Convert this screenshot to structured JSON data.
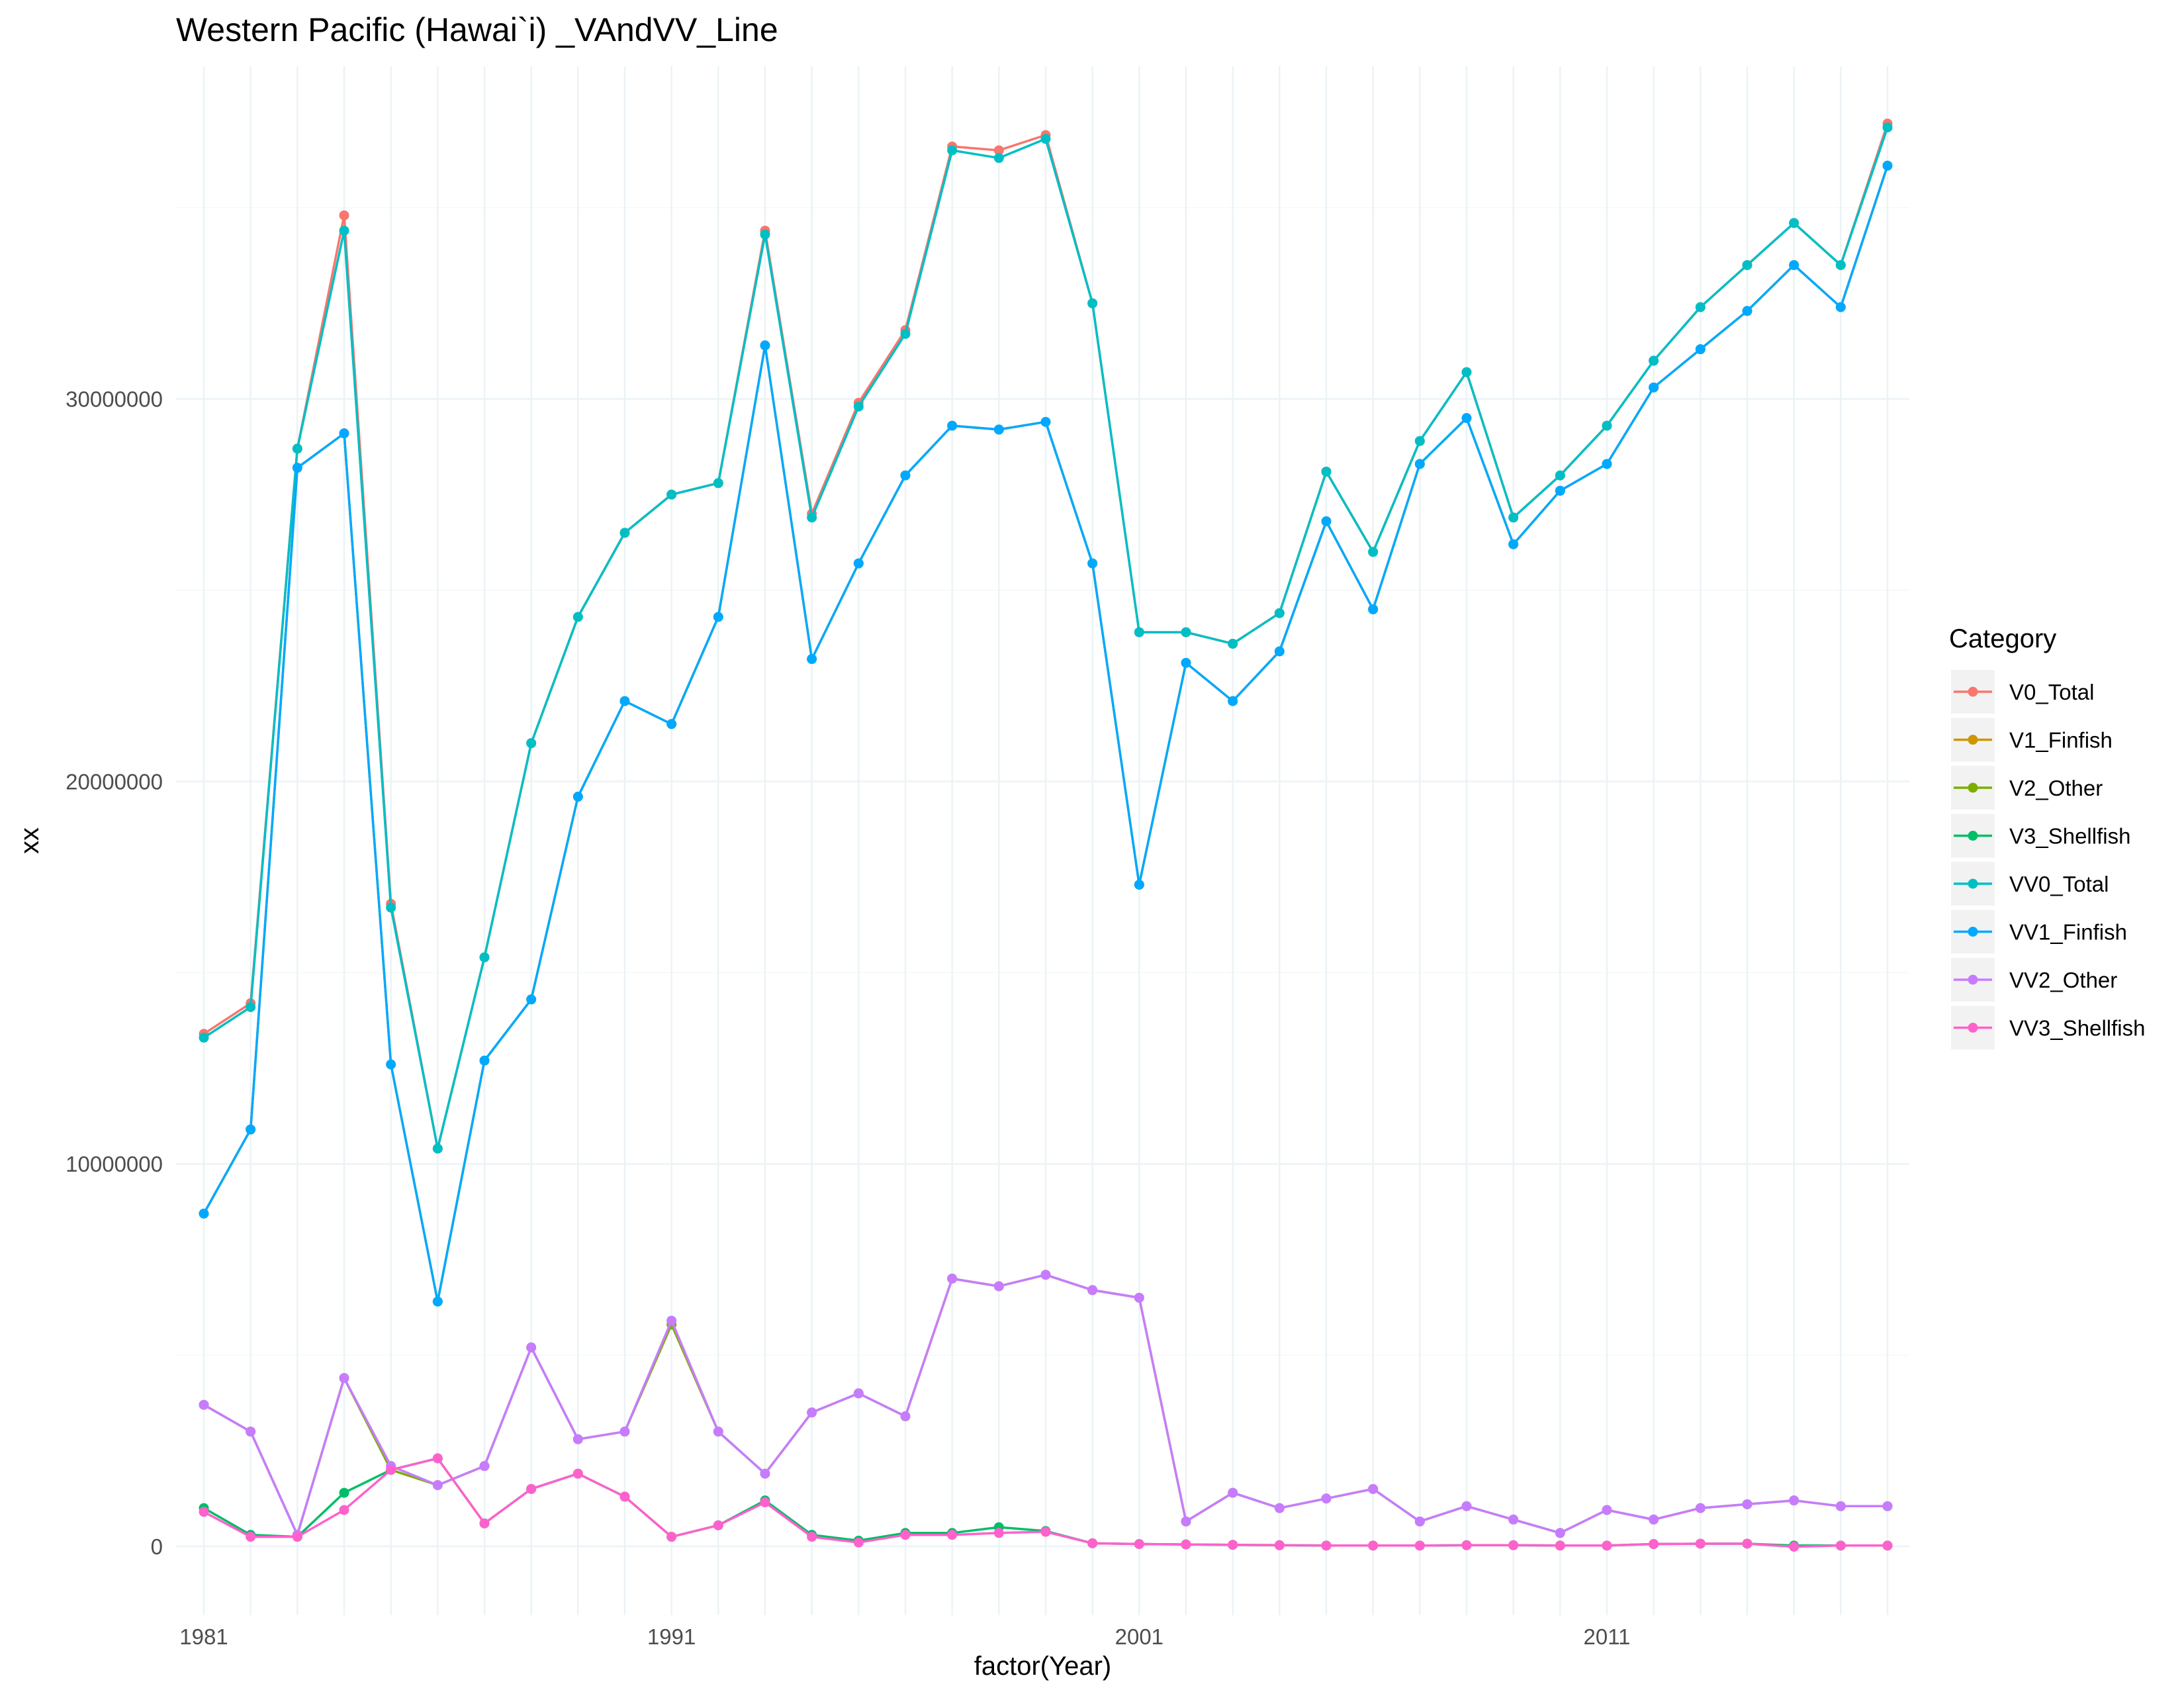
{
  "chart_data": {
    "type": "line",
    "title": "Western Pacific (Hawai`i) _VAndVV_Line",
    "xlabel": "factor(Year)",
    "ylabel": "xx",
    "x": [
      1981,
      1982,
      1983,
      1984,
      1985,
      1986,
      1987,
      1988,
      1989,
      1990,
      1991,
      1992,
      1993,
      1994,
      1995,
      1996,
      1997,
      1998,
      1999,
      2000,
      2001,
      2002,
      2003,
      2004,
      2005,
      2006,
      2007,
      2008,
      2009,
      2010,
      2011,
      2012,
      2013,
      2014,
      2015,
      2016,
      2017
    ],
    "x_tick_labels": [
      "1981",
      "1991",
      "2001",
      "2011"
    ],
    "y_ticks": [
      0,
      10000000,
      20000000,
      30000000
    ],
    "y_tick_labels": [
      "0",
      "10000000",
      "20000000",
      "30000000"
    ],
    "ylim": [
      -1800000,
      38700000
    ],
    "grid": true,
    "legend_position": "right",
    "legend_title": "Category",
    "series": [
      {
        "name": "V0_Total",
        "color": "#F8766D",
        "values": [
          13400000,
          14200000,
          28700000,
          34800000,
          16800000,
          10400000,
          15400000,
          21000000,
          24300000,
          26500000,
          27500000,
          27800000,
          34400000,
          27000000,
          29900000,
          31800000,
          36600000,
          36500000,
          36900000,
          32500000,
          23900000,
          23900000,
          23600000,
          24400000,
          28100000,
          26000000,
          28900000,
          30700000,
          26900000,
          28000000,
          29300000,
          31000000,
          32400000,
          33500000,
          34600000,
          33500000,
          37200000
        ]
      },
      {
        "name": "V1_Finfish",
        "color": "#CD9600",
        "values": [
          8700000,
          10900000,
          28200000,
          29100000,
          12600000,
          6400000,
          12700000,
          14300000,
          19600000,
          22100000,
          21500000,
          24300000,
          31400000,
          23200000,
          25700000,
          28000000,
          29300000,
          29200000,
          29400000,
          25700000,
          17300000,
          23100000,
          22100000,
          23400000,
          26800000,
          24500000,
          28300000,
          29500000,
          26200000,
          27600000,
          28300000,
          30300000,
          31300000,
          32300000,
          33500000,
          32400000,
          36100000
        ]
      },
      {
        "name": "V2_Other",
        "color": "#7CAE00",
        "values": [
          3700000,
          3000000,
          300000,
          4400000,
          2000000,
          1600000,
          2100000,
          5200000,
          2800000,
          3000000,
          5800000,
          3000000,
          1900000,
          3500000,
          4000000,
          3400000,
          7000000,
          6800000,
          7100000,
          6700000,
          6500000,
          650000,
          1400000,
          1000000,
          1250000,
          1500000,
          650000,
          1050000,
          700000,
          350000,
          950000,
          700000,
          1000000,
          1100000,
          1200000,
          1050000,
          1050000
        ]
      },
      {
        "name": "V3_Shellfish",
        "color": "#00BE67",
        "values": [
          1000000,
          300000,
          250000,
          1400000,
          2000000,
          2300000,
          600000,
          1500000,
          1900000,
          1300000,
          250000,
          550000,
          1200000,
          300000,
          150000,
          350000,
          350000,
          500000,
          400000,
          80000,
          60000,
          50000,
          40000,
          30000,
          20000,
          20000,
          20000,
          30000,
          30000,
          20000,
          20000,
          60000,
          70000,
          70000,
          20000,
          20000,
          20000
        ]
      },
      {
        "name": "VV0_Total",
        "color": "#00BFC4",
        "values": [
          13300000,
          14100000,
          28700000,
          34400000,
          16700000,
          10400000,
          15400000,
          21000000,
          24300000,
          26500000,
          27500000,
          27800000,
          34300000,
          26900000,
          29800000,
          31700000,
          36500000,
          36300000,
          36800000,
          32500000,
          23900000,
          23900000,
          23600000,
          24400000,
          28100000,
          26000000,
          28900000,
          30700000,
          26900000,
          28000000,
          29300000,
          31000000,
          32400000,
          33500000,
          34600000,
          33500000,
          37100000
        ]
      },
      {
        "name": "VV1_Finfish",
        "color": "#00A9FF",
        "values": [
          8700000,
          10900000,
          28200000,
          29100000,
          12600000,
          6400000,
          12700000,
          14300000,
          19600000,
          22100000,
          21500000,
          24300000,
          31400000,
          23200000,
          25700000,
          28000000,
          29300000,
          29200000,
          29400000,
          25700000,
          17300000,
          23100000,
          22100000,
          23400000,
          26800000,
          24500000,
          28300000,
          29500000,
          26200000,
          27600000,
          28300000,
          30300000,
          31300000,
          32300000,
          33500000,
          32400000,
          36100000
        ]
      },
      {
        "name": "VV2_Other",
        "color": "#C77CFF",
        "values": [
          3700000,
          3000000,
          300000,
          4400000,
          2100000,
          1600000,
          2100000,
          5200000,
          2800000,
          3000000,
          5900000,
          3000000,
          1900000,
          3500000,
          4000000,
          3400000,
          7000000,
          6800000,
          7100000,
          6700000,
          6500000,
          650000,
          1400000,
          1000000,
          1250000,
          1500000,
          650000,
          1050000,
          700000,
          350000,
          950000,
          700000,
          1000000,
          1100000,
          1200000,
          1050000,
          1050000
        ]
      },
      {
        "name": "VV3_Shellfish",
        "color": "#FF61CC",
        "values": [
          900000,
          250000,
          250000,
          950000,
          2000000,
          2300000,
          600000,
          1500000,
          1900000,
          1300000,
          250000,
          550000,
          1150000,
          250000,
          100000,
          300000,
          300000,
          350000,
          380000,
          80000,
          60000,
          50000,
          40000,
          30000,
          20000,
          20000,
          20000,
          30000,
          30000,
          20000,
          20000,
          60000,
          70000,
          70000,
          -10000,
          20000,
          20000
        ]
      }
    ]
  }
}
